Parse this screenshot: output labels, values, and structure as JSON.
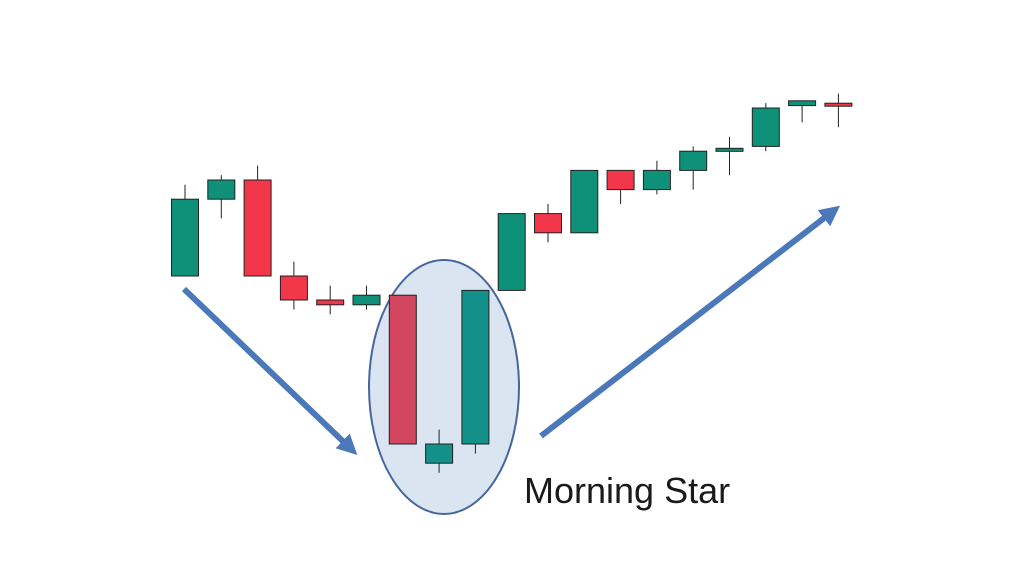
{
  "chart_data": {
    "type": "candlestick",
    "ylim": [
      0,
      100
    ],
    "grid": false,
    "legend": "none",
    "colors": {
      "up": "#0f9179",
      "down": "#f2374a",
      "highlight": "#dbe4f1",
      "arrow": "#4a78b8"
    },
    "candles": [
      {
        "open": 55,
        "close": 71,
        "high": 74,
        "low": 55
      },
      {
        "open": 71,
        "close": 75,
        "high": 76,
        "low": 67
      },
      {
        "open": 75,
        "close": 55,
        "high": 78,
        "low": 55
      },
      {
        "open": 55,
        "close": 50,
        "high": 58,
        "low": 48
      },
      {
        "open": 50,
        "close": 49,
        "high": 53,
        "low": 47
      },
      {
        "open": 49,
        "close": 51,
        "high": 53,
        "low": 48
      },
      {
        "open": 51,
        "close": 20,
        "high": 51,
        "low": 20
      },
      {
        "open": 16,
        "close": 20,
        "high": 23,
        "low": 14
      },
      {
        "open": 20,
        "close": 52,
        "high": 52,
        "low": 18
      },
      {
        "open": 52,
        "close": 68,
        "high": 68,
        "low": 52
      },
      {
        "open": 68,
        "close": 64,
        "high": 70,
        "low": 62
      },
      {
        "open": 64,
        "close": 77,
        "high": 77,
        "low": 64
      },
      {
        "open": 77,
        "close": 73,
        "high": 77,
        "low": 70
      },
      {
        "open": 73,
        "close": 77,
        "high": 79,
        "low": 72
      },
      {
        "open": 77,
        "close": 81,
        "high": 82,
        "low": 73
      },
      {
        "open": 81,
        "close": 81.6,
        "high": 84,
        "low": 76
      },
      {
        "open": 82,
        "close": 90,
        "high": 91,
        "low": 81
      },
      {
        "open": 90.5,
        "close": 91.5,
        "high": 91.5,
        "low": 87
      },
      {
        "open": 91,
        "close": 90.5,
        "high": 93,
        "low": 86
      }
    ],
    "highlight_candles": [
      6,
      7,
      8
    ],
    "annotations": [
      {
        "text": "Morning Star"
      }
    ]
  }
}
